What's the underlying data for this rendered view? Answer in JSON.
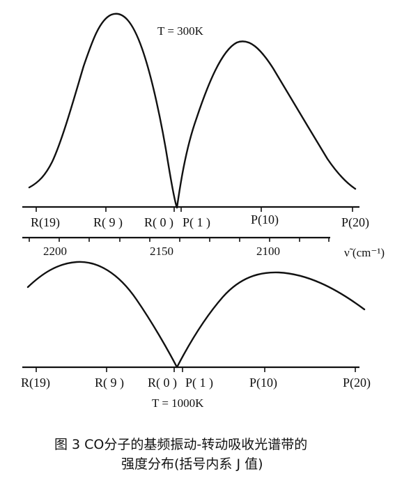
{
  "figure": {
    "caption_line1": "图 3   CO分子的基频振动-转动吸收光谱带的",
    "caption_line2": "强度分布(括号内系 J 值)"
  },
  "chart_data": [
    {
      "type": "line",
      "title": "T = 300K",
      "x_labels": [
        "R(19)",
        "R( 9 )",
        "R( 0 )",
        "P( 1 )",
        "P(10)",
        "P(20)"
      ],
      "wavenumber_ticks": [
        "2200",
        "2150",
        "2100"
      ],
      "wavenumber_axis_label": "ν̃  (cm⁻¹)",
      "curve_shape": "two-lobed absorption envelope; R branch peak near R(9), P branch peak near P(8); zero intensity at band origin between R(0) and P(1)"
    },
    {
      "type": "line",
      "title": "T = 1000K",
      "x_labels": [
        "R(19)",
        "R( 9 )",
        "R( 0 )",
        "P( 1 )",
        "P(10)",
        "P(20)"
      ],
      "curve_shape": "broader two-lobed envelope; R branch peak near R(14), P branch peak near P(13); zero at band origin"
    }
  ]
}
